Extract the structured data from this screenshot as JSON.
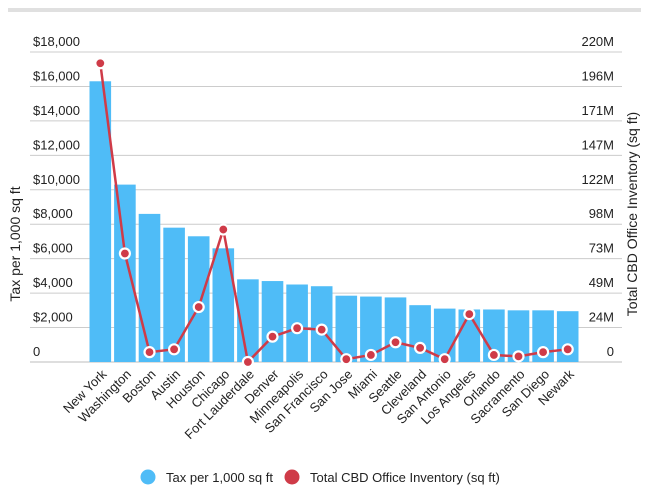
{
  "chart_data": {
    "type": "bar",
    "categories": [
      "New York",
      "Washington",
      "Boston",
      "Austin",
      "Houston",
      "Chicago",
      "Fort Lauderdale",
      "Denver",
      "Minneapolis",
      "San Francisco",
      "San Jose",
      "Miami",
      "Seattle",
      "Cleveland",
      "San Antonio",
      "Los Angeles",
      "Orlando",
      "Sacramento",
      "San Diego",
      "Newark"
    ],
    "series": [
      {
        "name": "Tax per 1,000 sq ft",
        "type": "bar",
        "axis": "left",
        "color": "#4fbcf7",
        "values": [
          16300,
          10300,
          8600,
          7800,
          7300,
          6600,
          4800,
          4700,
          4500,
          4400,
          3850,
          3800,
          3750,
          3300,
          3100,
          3050,
          3050,
          3000,
          3000,
          2950
        ]
      },
      {
        "name": "Total CBD Office Inventory (sq ft)",
        "type": "line",
        "axis": "right",
        "color": "#cf3b48",
        "values": [
          212000000,
          77000000,
          7000000,
          9000000,
          39000000,
          94000000,
          0,
          18000000,
          24000000,
          23000000,
          2000000,
          5000000,
          14000000,
          10000000,
          2000000,
          34000000,
          5000000,
          4000000,
          7000000,
          9000000
        ]
      }
    ],
    "ylabel": "Tax per 1,000 sq ft",
    "ylabel_right": "Total CBD Office Inventory (sq ft)",
    "ylim": [
      0,
      18000
    ],
    "ylim_right": [
      0,
      220000000
    ],
    "yticks_left": [
      "0",
      "$2,000",
      "$4,000",
      "$6,000",
      "$8,000",
      "$10,000",
      "$12,000",
      "$14,000",
      "$16,000",
      "$18,000"
    ],
    "yticks_right": [
      "0",
      "24M",
      "49M",
      "73M",
      "98M",
      "122M",
      "147M",
      "171M",
      "196M",
      "220M"
    ],
    "grid": true,
    "legend_position": "bottom"
  }
}
